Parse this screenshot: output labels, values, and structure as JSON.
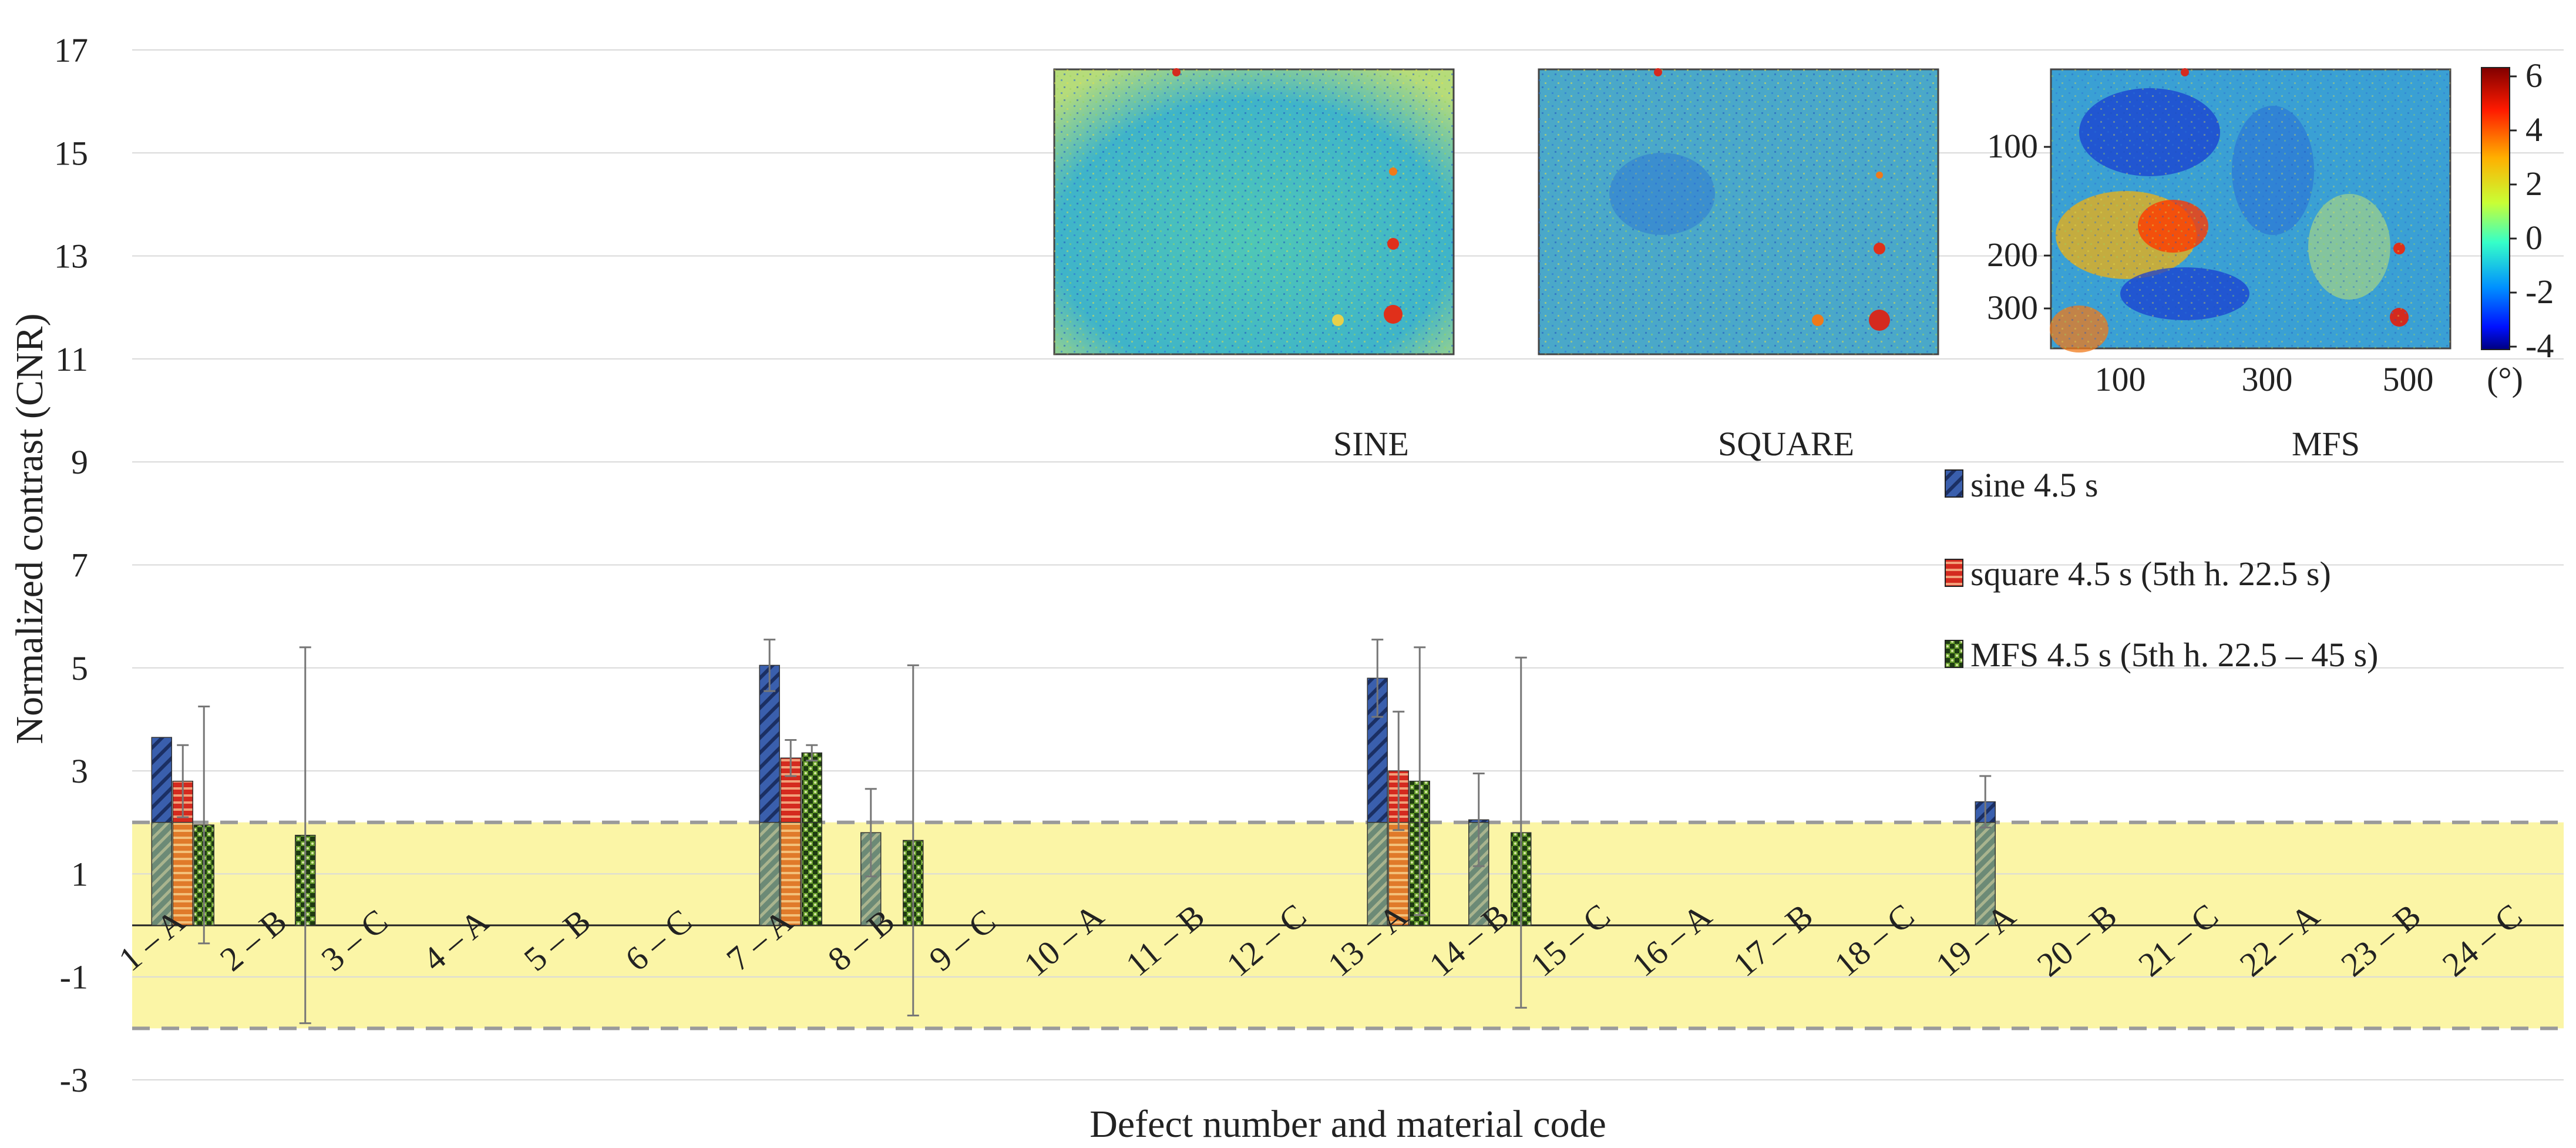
{
  "chart_data": {
    "type": "bar",
    "xlabel": "Defect number and material code",
    "ylabel": "Normalized contrast  (CNR)",
    "ylim": [
      -3,
      17
    ],
    "yticks": [
      -3,
      -1,
      1,
      3,
      5,
      7,
      9,
      11,
      13,
      15,
      17
    ],
    "categories": [
      "1 – A",
      "2 – B",
      "3 – C",
      "4 – A",
      "5 – B",
      "6 – C",
      "7 – A",
      "8 – B",
      "9 – C",
      "10 – A",
      "11 – B",
      "12 – C",
      "13 – A",
      "14 – B",
      "15 – C",
      "16 – A",
      "17 – B",
      "18 – C",
      "19 – A",
      "20 – B",
      "21 – C",
      "22 – A",
      "23 – B",
      "24 – C"
    ],
    "series": [
      {
        "name": "sine 4.5 s",
        "color": "#3a5fad",
        "values": [
          3.65,
          null,
          null,
          null,
          null,
          null,
          5.05,
          1.8,
          null,
          null,
          null,
          null,
          4.8,
          2.05,
          null,
          null,
          null,
          null,
          2.4,
          null,
          null,
          null,
          null,
          null
        ],
        "errors": [
          null,
          null,
          null,
          null,
          null,
          null,
          0.5,
          0.85,
          null,
          null,
          null,
          null,
          0.75,
          0.9,
          null,
          null,
          null,
          null,
          0.5,
          null,
          null,
          null,
          null,
          null
        ]
      },
      {
        "name": "square 4.5 s (5th h. 22.5 s)",
        "color": "#d42a1f",
        "values": [
          2.8,
          null,
          null,
          null,
          null,
          null,
          3.25,
          null,
          null,
          null,
          null,
          null,
          3.0,
          null,
          null,
          null,
          null,
          null,
          null,
          null,
          null,
          null,
          null,
          null
        ],
        "errors": [
          0.7,
          null,
          null,
          null,
          null,
          null,
          0.35,
          null,
          null,
          null,
          null,
          null,
          1.15,
          null,
          null,
          null,
          null,
          null,
          null,
          null,
          null,
          null,
          null,
          null
        ]
      },
      {
        "name": "MFS 4.5 s (5th h. 22.5 – 45 s)",
        "color": "#6aa12f",
        "values": [
          1.95,
          1.75,
          null,
          null,
          null,
          null,
          3.35,
          1.65,
          null,
          null,
          null,
          null,
          2.8,
          1.8,
          null,
          null,
          null,
          null,
          null,
          null,
          null,
          null,
          null,
          null
        ],
        "errors": [
          2.3,
          3.65,
          null,
          null,
          null,
          null,
          0.15,
          3.4,
          null,
          null,
          null,
          null,
          2.6,
          3.4,
          null,
          null,
          null,
          null,
          null,
          null,
          null,
          null,
          null,
          null
        ]
      }
    ],
    "threshold": {
      "upper": 2,
      "lower": -2,
      "fill_color": "#fbf5a6",
      "line_color": "#9a9a9a"
    },
    "insets": [
      {
        "label": "SINE"
      },
      {
        "label": "SQUARE"
      },
      {
        "label": "MFS",
        "yticks": [
          "100",
          "200",
          "300"
        ],
        "xticks": [
          "100",
          "300",
          "500"
        ]
      }
    ],
    "colorbar": {
      "ticks": [
        "6",
        "4",
        "2",
        "0",
        "-2",
        "-4"
      ],
      "unit": "(°)"
    }
  }
}
